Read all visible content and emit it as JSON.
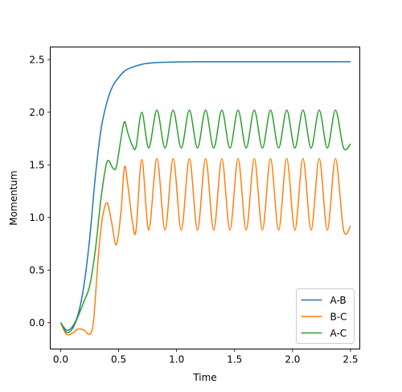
{
  "chart_data": {
    "type": "line",
    "title": "",
    "xlabel": "Time",
    "ylabel": "Momentum",
    "xlim": [
      -0.09,
      2.58
    ],
    "ylim": [
      -0.25,
      2.62
    ],
    "xticks": [
      0.0,
      0.5,
      1.0,
      1.5,
      2.0,
      2.5
    ],
    "xtick_labels": [
      "0.0",
      "0.5",
      "1.0",
      "1.5",
      "2.0",
      "2.5"
    ],
    "yticks": [
      0.0,
      0.5,
      1.0,
      1.5,
      2.0,
      2.5
    ],
    "ytick_labels": [
      "0.0",
      "0.5",
      "1.0",
      "1.5",
      "2.0",
      "2.5"
    ],
    "grid": false,
    "legend_position": "lower-right",
    "series": [
      {
        "name": "A-B",
        "color": "#1f77b4",
        "x": [
          0.0,
          0.05,
          0.1,
          0.15,
          0.2,
          0.25,
          0.3,
          0.35,
          0.4,
          0.45,
          0.5,
          0.55,
          0.6,
          0.7,
          0.8,
          0.9,
          1.0,
          1.2,
          1.5,
          2.0,
          2.5
        ],
        "y": [
          0.0,
          -0.07,
          -0.04,
          0.08,
          0.35,
          0.8,
          1.4,
          1.85,
          2.1,
          2.25,
          2.33,
          2.39,
          2.42,
          2.455,
          2.47,
          2.475,
          2.478,
          2.48,
          2.48,
          2.48,
          2.48
        ]
      },
      {
        "name": "B-C",
        "color": "#ff7f0e",
        "x": [
          0.0,
          0.05,
          0.1,
          0.15,
          0.2,
          0.25,
          0.28,
          0.3,
          0.33,
          0.36,
          0.4,
          0.44,
          0.48,
          0.52,
          0.55,
          0.58,
          0.62,
          0.65,
          0.7,
          0.76,
          0.83,
          0.9,
          0.97,
          1.04,
          1.11,
          1.18,
          1.25,
          1.32,
          1.39,
          1.46,
          1.53,
          1.6,
          1.67,
          1.74,
          1.81,
          1.88,
          1.95,
          2.02,
          2.09,
          2.16,
          2.23,
          2.3,
          2.37,
          2.44,
          2.5
        ],
        "y": [
          0.0,
          -0.11,
          -0.1,
          -0.06,
          -0.07,
          -0.11,
          -0.02,
          0.25,
          0.7,
          1.0,
          1.14,
          0.95,
          0.74,
          1.05,
          1.48,
          1.3,
          0.95,
          0.88,
          1.55,
          0.88,
          1.56,
          0.88,
          1.56,
          0.88,
          1.56,
          0.88,
          1.56,
          0.88,
          1.56,
          0.88,
          1.56,
          0.88,
          1.56,
          0.88,
          1.56,
          0.88,
          1.56,
          0.88,
          1.56,
          0.88,
          1.56,
          0.88,
          1.56,
          0.88,
          0.92
        ]
      },
      {
        "name": "A-C",
        "color": "#2ca02c",
        "x": [
          0.0,
          0.05,
          0.1,
          0.15,
          0.2,
          0.25,
          0.3,
          0.35,
          0.4,
          0.45,
          0.48,
          0.52,
          0.55,
          0.58,
          0.62,
          0.65,
          0.7,
          0.76,
          0.83,
          0.9,
          0.97,
          1.04,
          1.11,
          1.18,
          1.25,
          1.32,
          1.39,
          1.46,
          1.53,
          1.6,
          1.67,
          1.74,
          1.81,
          1.88,
          1.95,
          2.02,
          2.09,
          2.16,
          2.23,
          2.3,
          2.37,
          2.44,
          2.5
        ],
        "y": [
          0.0,
          -0.09,
          -0.06,
          0.06,
          0.2,
          0.35,
          0.7,
          1.2,
          1.53,
          1.47,
          1.48,
          1.75,
          1.91,
          1.8,
          1.68,
          1.67,
          2.0,
          1.66,
          2.02,
          1.66,
          2.02,
          1.66,
          2.02,
          1.66,
          2.02,
          1.66,
          2.02,
          1.66,
          2.02,
          1.66,
          2.02,
          1.66,
          2.02,
          1.66,
          2.02,
          1.66,
          2.02,
          1.66,
          2.02,
          1.66,
          2.02,
          1.66,
          1.7
        ]
      }
    ]
  }
}
